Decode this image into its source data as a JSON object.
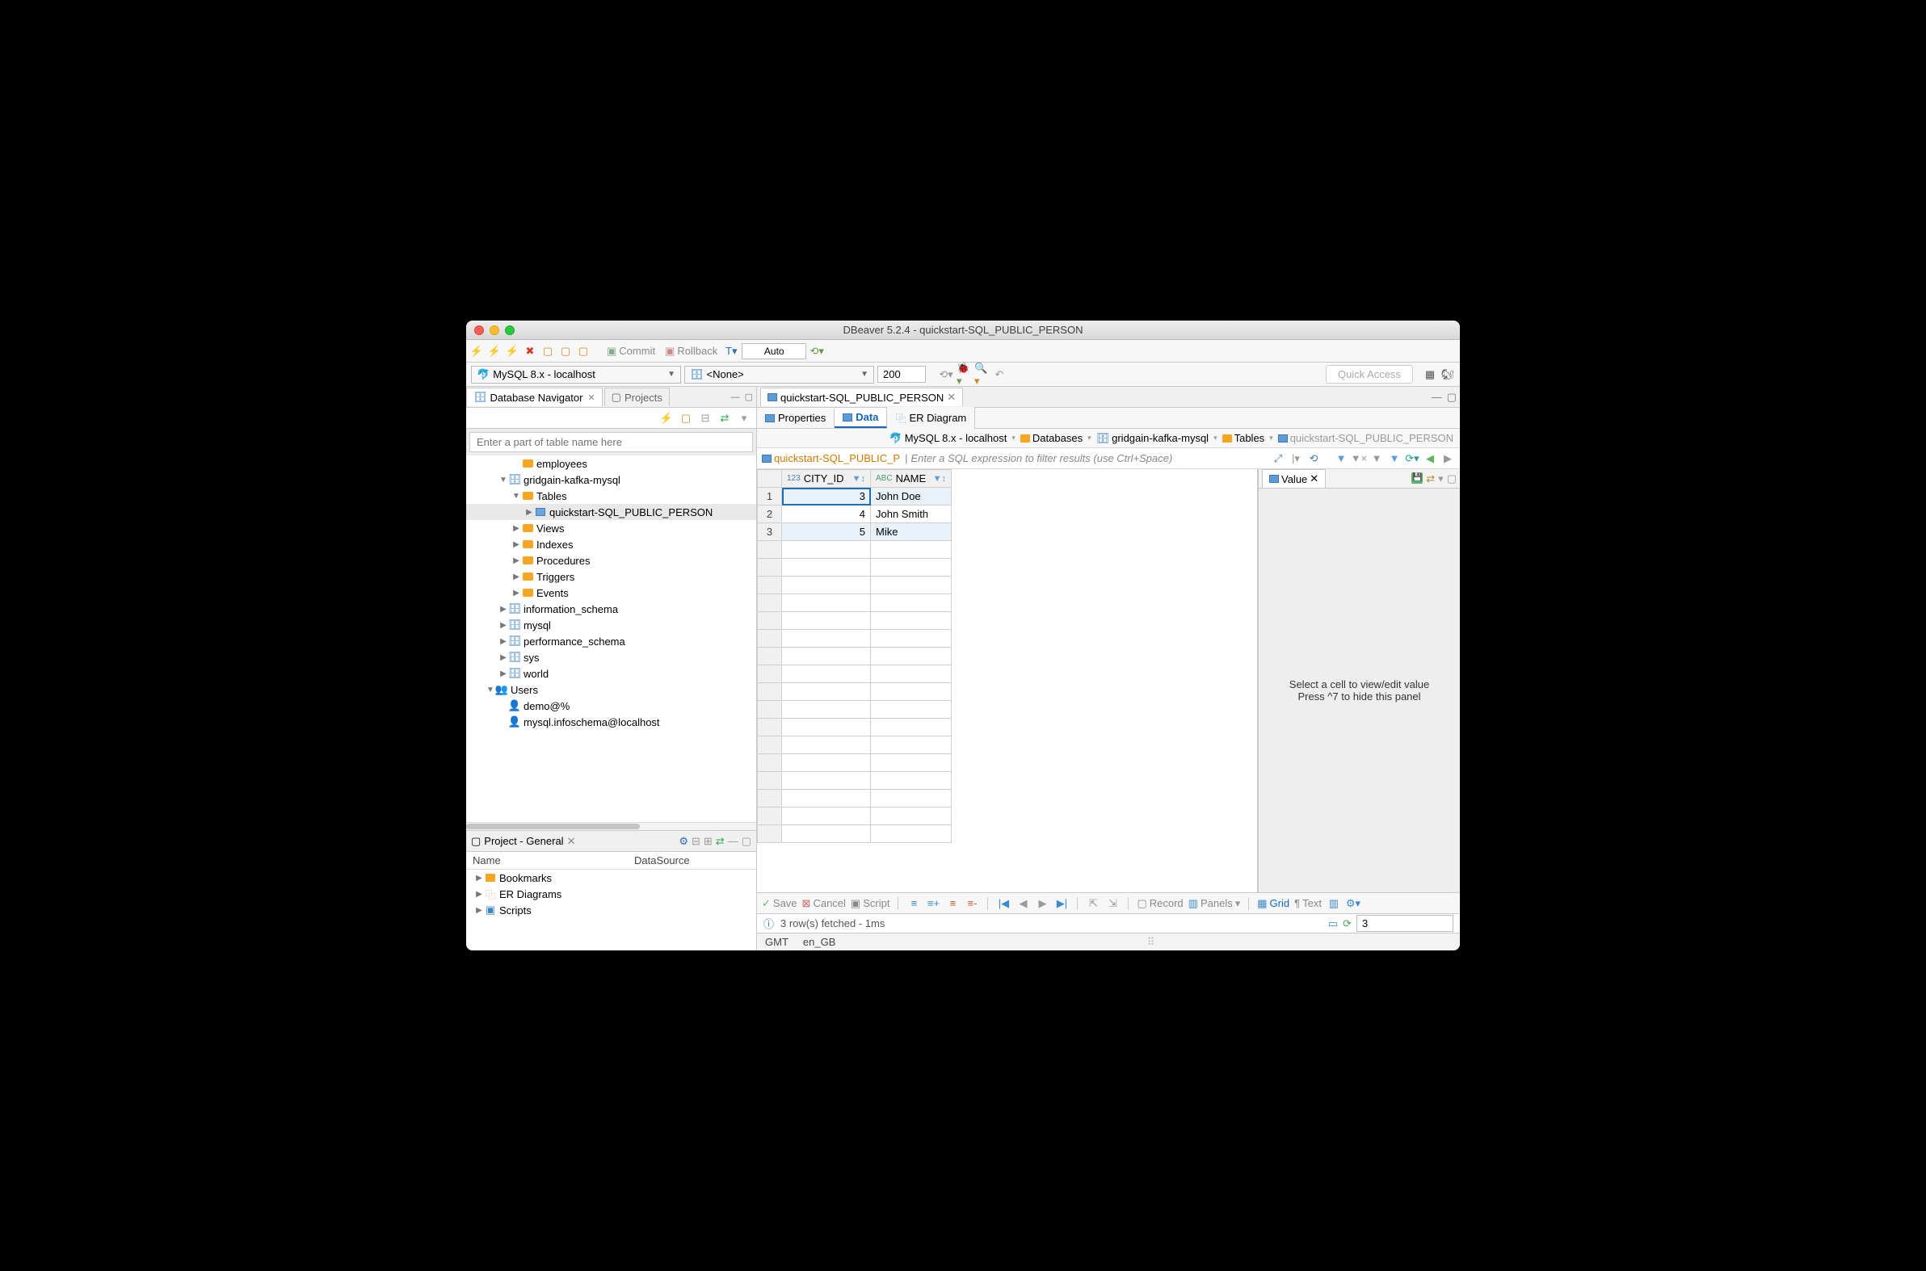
{
  "window": {
    "title": "DBeaver 5.2.4 - quickstart-SQL_PUBLIC_PERSON"
  },
  "toolbar1": {
    "commit": "Commit",
    "rollback": "Rollback",
    "auto": "Auto"
  },
  "toolbar2": {
    "connection": "MySQL 8.x - localhost",
    "schema": "<None>",
    "limit": "200",
    "quick_access_placeholder": "Quick Access"
  },
  "navigator": {
    "title": "Database Navigator",
    "projects_tab": "Projects",
    "filter_placeholder": "Enter a part of table name here",
    "tree": [
      {
        "indent": 2,
        "tw": "",
        "icon": "folder",
        "label": "employees"
      },
      {
        "indent": 1,
        "tw": "▼",
        "icon": "db",
        "label": "gridgain-kafka-mysql"
      },
      {
        "indent": 2,
        "tw": "▼",
        "icon": "folder-orange",
        "label": "Tables"
      },
      {
        "indent": 3,
        "tw": "▶",
        "icon": "table",
        "label": "quickstart-SQL_PUBLIC_PERSON",
        "selected": true
      },
      {
        "indent": 2,
        "tw": "▶",
        "icon": "folder-orange",
        "label": "Views"
      },
      {
        "indent": 2,
        "tw": "▶",
        "icon": "folder",
        "label": "Indexes"
      },
      {
        "indent": 2,
        "tw": "▶",
        "icon": "folder",
        "label": "Procedures"
      },
      {
        "indent": 2,
        "tw": "▶",
        "icon": "folder",
        "label": "Triggers"
      },
      {
        "indent": 2,
        "tw": "▶",
        "icon": "folder",
        "label": "Events"
      },
      {
        "indent": 1,
        "tw": "▶",
        "icon": "db",
        "label": "information_schema"
      },
      {
        "indent": 1,
        "tw": "▶",
        "icon": "db",
        "label": "mysql"
      },
      {
        "indent": 1,
        "tw": "▶",
        "icon": "db",
        "label": "performance_schema"
      },
      {
        "indent": 1,
        "tw": "▶",
        "icon": "db",
        "label": "sys"
      },
      {
        "indent": 1,
        "tw": "▶",
        "icon": "db",
        "label": "world"
      },
      {
        "indent": 0,
        "tw": "▼",
        "icon": "users",
        "label": "Users"
      },
      {
        "indent": 1,
        "tw": "",
        "icon": "user",
        "label": "demo@%"
      },
      {
        "indent": 1,
        "tw": "",
        "icon": "user",
        "label": "mysql.infoschema@localhost"
      }
    ]
  },
  "project": {
    "title": "Project - General",
    "col_name": "Name",
    "col_ds": "DataSource",
    "items": [
      {
        "icon": "bookmark",
        "label": "Bookmarks"
      },
      {
        "icon": "er",
        "label": "ER Diagrams"
      },
      {
        "icon": "script",
        "label": "Scripts"
      }
    ]
  },
  "editor": {
    "tab_title": "quickstart-SQL_PUBLIC_PERSON",
    "sub_tabs": {
      "properties": "Properties",
      "data": "Data",
      "er": "ER Diagram"
    },
    "breadcrumb": {
      "conn": "MySQL 8.x - localhost",
      "dbs": "Databases",
      "db": "gridgain-kafka-mysql",
      "tables": "Tables",
      "table": "quickstart-SQL_PUBLIC_PERSON"
    },
    "filter_label": "quickstart-SQL_PUBLIC_P",
    "filter_placeholder": "Enter a SQL expression to filter results (use Ctrl+Space)"
  },
  "grid": {
    "columns": [
      {
        "type": "123",
        "name": "CITY_ID",
        "width": 110,
        "align": "right"
      },
      {
        "type": "ABC",
        "name": "NAME",
        "width": 100,
        "align": "left"
      }
    ],
    "rows": [
      {
        "n": 1,
        "cells": [
          "3",
          "John Doe"
        ],
        "odd": true,
        "selected": true
      },
      {
        "n": 2,
        "cells": [
          "4",
          "John Smith"
        ],
        "odd": false
      },
      {
        "n": 3,
        "cells": [
          "5",
          "Mike"
        ],
        "odd": true
      }
    ],
    "empty_row_count": 17
  },
  "value_panel": {
    "tab": "Value",
    "hint1": "Select a cell to view/edit value",
    "hint2": "Press ^7 to hide this panel"
  },
  "bottom_toolbar": {
    "save": "Save",
    "cancel": "Cancel",
    "script": "Script",
    "record": "Record",
    "panels": "Panels",
    "grid": "Grid",
    "text": "Text"
  },
  "fetch_status": {
    "msg": "3 row(s) fetched - 1ms",
    "count": "3"
  },
  "status_bar": {
    "tz": "GMT",
    "locale": "en_GB"
  },
  "colors": {
    "accent": "#1565c0",
    "orange": "#f6a623",
    "blue": "#3b82c4"
  }
}
